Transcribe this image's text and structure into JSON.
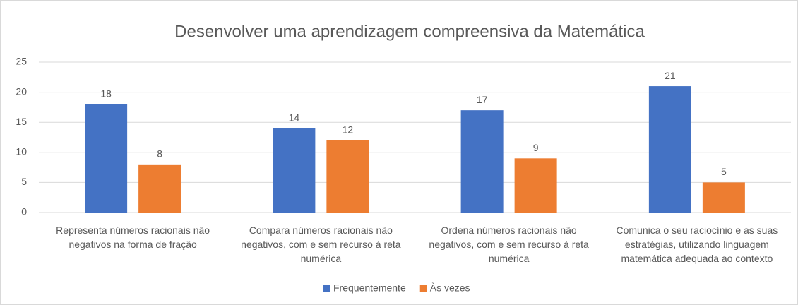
{
  "chart_data": {
    "type": "bar",
    "title": "Desenvolver uma aprendizagem compreensiva da Matemática",
    "categories": [
      "Representa números racionais não negativos na forma de fração",
      "Compara números racionais não negativos, com e sem recurso à reta numérica",
      "Ordena números racionais não negativos, com e sem recurso à reta numérica",
      "Comunica o seu raciocínio e as suas estratégias, utilizando linguagem matemática adequada ao contexto"
    ],
    "series": [
      {
        "name": "Frequentemente",
        "color": "#4472c4",
        "values": [
          18,
          14,
          17,
          21
        ]
      },
      {
        "name": "Às vezes",
        "color": "#ed7d31",
        "values": [
          8,
          12,
          9,
          5
        ]
      }
    ],
    "ylim": [
      0,
      25
    ],
    "yticks": [
      0,
      5,
      10,
      15,
      20,
      25
    ],
    "grid": true,
    "legend": "bottom"
  }
}
